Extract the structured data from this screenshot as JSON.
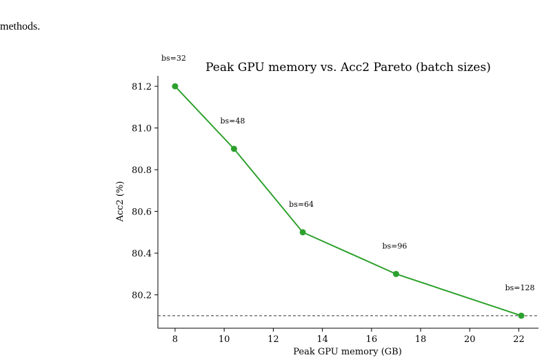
{
  "page": {
    "intro_text": "methods."
  },
  "chart_data": {
    "type": "line",
    "title": "Peak GPU memory vs. Acc2 Pareto (batch sizes)",
    "xlabel": "Peak GPU memory (GB)",
    "ylabel": "Acc2 (%)",
    "xlim": [
      7.3,
      22.8
    ],
    "ylim": [
      80.04,
      81.25
    ],
    "xticks": [
      8,
      10,
      12,
      14,
      16,
      18,
      20,
      22
    ],
    "yticks": [
      80.2,
      80.4,
      80.6,
      80.8,
      81.0,
      81.2
    ],
    "xtick_labels": [
      "8",
      "10",
      "12",
      "14",
      "16",
      "18",
      "20",
      "22"
    ],
    "ytick_labels": [
      "80.2",
      "80.4",
      "80.6",
      "80.8",
      "81.0",
      "81.2"
    ],
    "series": [
      {
        "color": "#2ca02c",
        "x": [
          8.0,
          10.4,
          13.2,
          17.0,
          22.1
        ],
        "y": [
          81.2,
          80.9,
          80.5,
          80.3,
          80.1
        ],
        "labels": [
          "bs=32",
          "bs=48",
          "bs=64",
          "bs=96",
          "bs=128"
        ]
      }
    ],
    "reference_line": {
      "y": 80.1,
      "style": "dashed",
      "color": "#333333"
    },
    "grid": false,
    "spines": "left-bottom"
  }
}
